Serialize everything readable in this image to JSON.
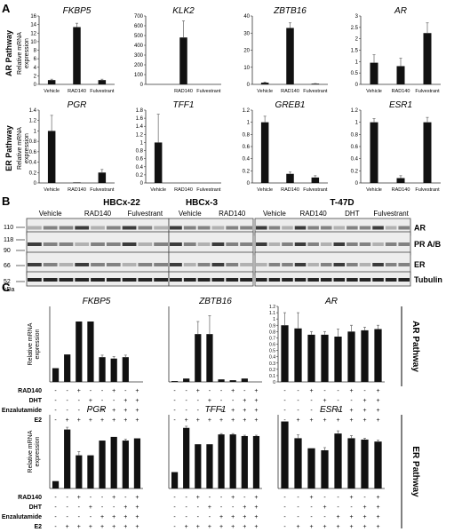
{
  "panel_labels": [
    "A",
    "B",
    "C"
  ],
  "panel_a": {
    "row_labels": [
      "AR Pathway",
      "ER Pathway"
    ],
    "ylabel_line1": "Relative mRNA",
    "ylabel_line2": "expression"
  },
  "panel_b": {
    "groups": [
      {
        "title": "HBCx-22",
        "lanes": [
          "Vehicle",
          "RAD140",
          "Fulvestrant"
        ]
      },
      {
        "title": "HBCx-3",
        "lanes": [
          "Vehicle",
          "RAD140"
        ]
      },
      {
        "title": "T-47D",
        "lanes": [
          "Vehicle",
          "RAD140",
          "DHT",
          "Fulvestrant"
        ]
      }
    ],
    "row_labels": [
      "AR",
      "PR A/B",
      "ER",
      "Tubulin"
    ],
    "mw_markers": [
      "110",
      "118",
      "90",
      "66",
      "52"
    ],
    "kda_label": "kDa"
  },
  "panel_c": {
    "row_labels": [
      "AR Pathway",
      "ER Pathway"
    ],
    "ylabel_line1": "Relative mRNA",
    "ylabel_line2": "expression",
    "treatment_rows": [
      "RAD140",
      "DHT",
      "Enzalutamide",
      "E2"
    ],
    "treatment_matrix": [
      [
        "-",
        "-",
        "+",
        "-",
        "-",
        "+",
        "-",
        "+"
      ],
      [
        "-",
        "-",
        "-",
        "+",
        "-",
        "-",
        "+",
        "+"
      ],
      [
        "-",
        "-",
        "-",
        "-",
        "+",
        "+",
        "+",
        "+"
      ],
      [
        "-",
        "+",
        "+",
        "+",
        "+",
        "+",
        "+",
        "+"
      ]
    ]
  },
  "chart_data": [
    {
      "type": "bar",
      "panel": "A",
      "title": "FKBP5",
      "categories": [
        "Vehicle",
        "RAD140",
        "Fulvestrant"
      ],
      "values": [
        1,
        13.4,
        1
      ],
      "errors": [
        0.2,
        0.9,
        0.2
      ],
      "ylim": [
        0,
        16
      ],
      "yticks": [
        "0",
        "2",
        "4",
        "6",
        "8",
        "10",
        "12",
        "14",
        "16"
      ]
    },
    {
      "type": "bar",
      "panel": "A",
      "title": "KLK2",
      "categories": [
        "RAD140",
        "Fulvestrant"
      ],
      "values": [
        480,
        0
      ],
      "errors": [
        170,
        0
      ],
      "ylim": [
        0,
        700
      ],
      "yticks": [
        "0",
        "100",
        "200",
        "300",
        "400",
        "500",
        "600",
        "700"
      ]
    },
    {
      "type": "bar",
      "panel": "A",
      "title": "ZBTB16",
      "categories": [
        "Vehicle",
        "RAD140",
        "Fulvestrant"
      ],
      "values": [
        1,
        33,
        0.4
      ],
      "errors": [
        0.3,
        3,
        0.1
      ],
      "ylim": [
        0,
        40
      ],
      "yticks": [
        "0",
        "10",
        "20",
        "30",
        "40"
      ]
    },
    {
      "type": "bar",
      "panel": "A",
      "title": "AR",
      "categories": [
        "Vehicle",
        "RAD140",
        "Fulvestrant"
      ],
      "values": [
        0.95,
        0.8,
        2.25
      ],
      "errors": [
        0.35,
        0.35,
        0.45
      ],
      "ylim": [
        0,
        3
      ],
      "yticks": [
        "0",
        "0.5",
        "1",
        "1.5",
        "2",
        "2.5",
        "3"
      ]
    },
    {
      "type": "bar",
      "panel": "A",
      "title": "PGR",
      "categories": [
        "Vehicle",
        "RAD140",
        "Fulvestrant"
      ],
      "values": [
        1,
        0.01,
        0.2
      ],
      "errors": [
        0.3,
        0,
        0.06
      ],
      "ylim": [
        0,
        1.4
      ],
      "yticks": [
        "0",
        "0.2",
        "0.4",
        "0.6",
        "0.8",
        "1",
        "1.2",
        "1.4"
      ]
    },
    {
      "type": "bar",
      "panel": "A",
      "title": "TFF1",
      "categories": [
        "Vehicle",
        "RAD140",
        "Fulvestrant"
      ],
      "values": [
        1,
        0,
        0
      ],
      "errors": [
        0.7,
        0,
        0
      ],
      "ylim": [
        0,
        1.8
      ],
      "yticks": [
        "0",
        "0.2",
        "0.4",
        "0.6",
        "0.8",
        "1",
        "1.2",
        "1.4",
        "1.6",
        "1.8"
      ]
    },
    {
      "type": "bar",
      "panel": "A",
      "title": "GREB1",
      "categories": [
        "Vehicle",
        "RAD140",
        "Fulvestrant"
      ],
      "values": [
        1,
        0.15,
        0.09
      ],
      "errors": [
        0.1,
        0.03,
        0.03
      ],
      "ylim": [
        0,
        1.2
      ],
      "yticks": [
        "0",
        "0.2",
        "0.4",
        "0.6",
        "0.8",
        "1",
        "1.2"
      ]
    },
    {
      "type": "bar",
      "panel": "A",
      "title": "ESR1",
      "categories": [
        "Vehicle",
        "RAD140",
        "Fulvestrant"
      ],
      "values": [
        1,
        0.08,
        1
      ],
      "errors": [
        0.06,
        0.04,
        0.08
      ],
      "ylim": [
        0,
        1.2
      ],
      "yticks": [
        "0",
        "0.2",
        "0.4",
        "0.6",
        "0.8",
        "1",
        "1.2"
      ]
    },
    {
      "type": "bar",
      "panel": "C",
      "title": "FKBP5",
      "categories": [
        "1",
        "2",
        "3",
        "4",
        "5",
        "6",
        "7",
        "8"
      ],
      "values": [
        1,
        2,
        4.4,
        4.4,
        1.8,
        1.7,
        1.8,
        0
      ],
      "errors": [
        0,
        0,
        0,
        0,
        0.15,
        0.15,
        0.15,
        0
      ],
      "ylim": [
        0,
        5.5
      ],
      "yticks": []
    },
    {
      "type": "bar",
      "panel": "C",
      "title": "ZBTB16",
      "categories": [
        "1",
        "2",
        "3",
        "4",
        "5",
        "6",
        "7",
        "8"
      ],
      "values": [
        1,
        4,
        57,
        57,
        3,
        2,
        4,
        0
      ],
      "errors": [
        0,
        0,
        15,
        22,
        0,
        0,
        0,
        0
      ],
      "ylim": [
        0,
        90
      ],
      "yticks": []
    },
    {
      "type": "bar",
      "panel": "C",
      "title": "AR",
      "categories": [
        "1",
        "2",
        "3",
        "4",
        "5",
        "6",
        "7",
        "8"
      ],
      "values": [
        0.9,
        0.85,
        0.75,
        0.75,
        0.72,
        0.8,
        0.82,
        0.84
      ],
      "errors": [
        0.2,
        0.25,
        0.05,
        0.05,
        0.12,
        0.1,
        0.05,
        0.06
      ],
      "ylim": [
        0,
        1.2
      ],
      "yticks": [
        "0",
        "0.1",
        "0.2",
        "0.3",
        "0.4",
        "0.5",
        "0.6",
        "0.7",
        "0.8",
        "0.9",
        "1",
        "1.1",
        "1.2"
      ]
    },
    {
      "type": "bar",
      "panel": "C",
      "title": "PGR",
      "categories": [
        "1",
        "2",
        "3",
        "4",
        "5",
        "6",
        "7",
        "8"
      ],
      "values": [
        1,
        8,
        4.5,
        4.5,
        6.5,
        7,
        6.5,
        6.8
      ],
      "errors": [
        0,
        0.3,
        0.5,
        0,
        0,
        0,
        0.2,
        0
      ],
      "ylim": [
        0,
        10
      ],
      "yticks": []
    },
    {
      "type": "bar",
      "panel": "C",
      "title": "TFF1",
      "categories": [
        "1",
        "2",
        "3",
        "4",
        "5",
        "6",
        "7",
        "8"
      ],
      "values": [
        1,
        3.7,
        2.7,
        2.7,
        3.3,
        3.3,
        3.2,
        3.2
      ],
      "errors": [
        0,
        0.1,
        0,
        0,
        0.05,
        0.05,
        0.05,
        0.05
      ],
      "ylim": [
        0,
        4.5
      ],
      "yticks": []
    },
    {
      "type": "bar",
      "panel": "C",
      "title": "ESR1",
      "categories": [
        "1",
        "2",
        "3",
        "4",
        "5",
        "6",
        "7",
        "8"
      ],
      "values": [
        1,
        0.75,
        0.6,
        0.57,
        0.82,
        0.75,
        0.73,
        0.7
      ],
      "errors": [
        0,
        0.05,
        0,
        0.04,
        0.04,
        0.04,
        0.02,
        0.02
      ],
      "ylim": [
        0,
        1.1
      ],
      "yticks": []
    }
  ]
}
